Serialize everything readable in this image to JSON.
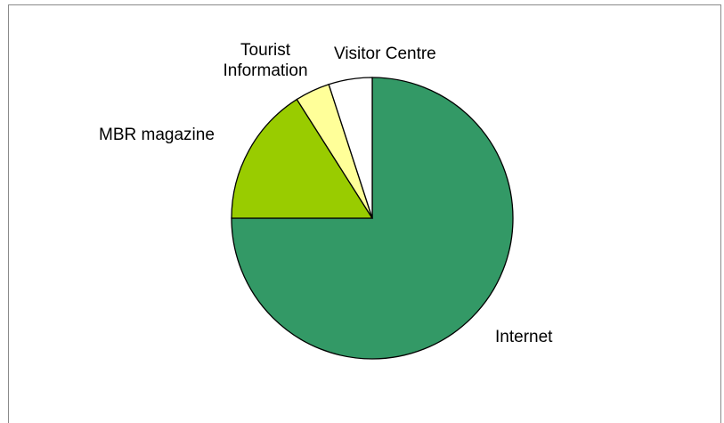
{
  "chart_data": {
    "type": "pie",
    "title": "",
    "slices": [
      {
        "label": "Internet",
        "value": 75,
        "color": "#339966"
      },
      {
        "label": "MBR magazine",
        "value": 16,
        "color": "#99cc00"
      },
      {
        "label": "Tourist\nInformation",
        "value": 4,
        "color": "#ffff99"
      },
      {
        "label": "Visitor Centre",
        "value": 5,
        "color": "#ffffff"
      }
    ],
    "start_angle_deg": 0,
    "direction": "clockwise",
    "legend": "none",
    "outline_color": "#000000"
  }
}
